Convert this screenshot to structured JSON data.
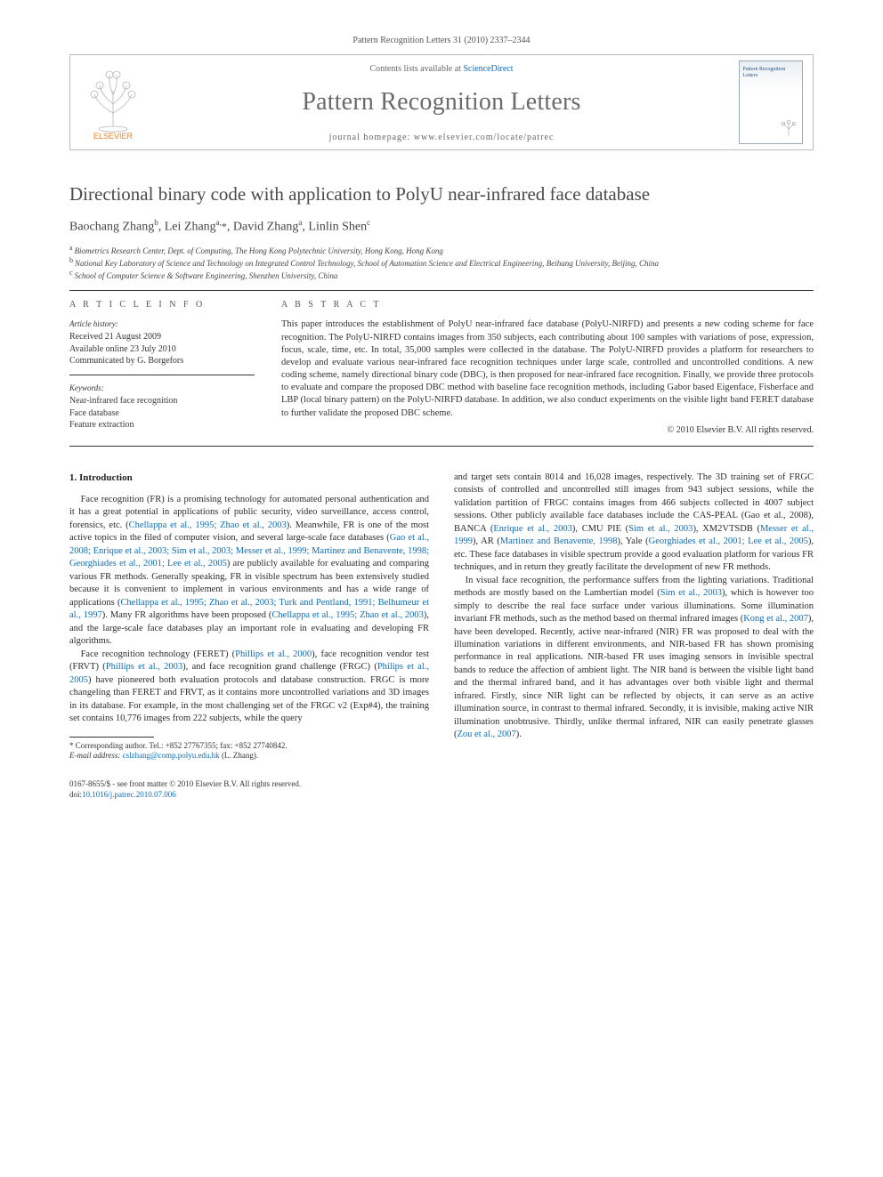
{
  "citation": "Pattern Recognition Letters 31 (2010) 2337–2344",
  "header": {
    "contents_prefix": "Contents lists available at ",
    "contents_link": "ScienceDirect",
    "journal": "Pattern Recognition Letters",
    "homepage_label": "journal homepage: www.elsevier.com/locate/patrec",
    "elsevier_label": "ELSEVIER",
    "cover_title": "Pattern Recognition Letters"
  },
  "title": "Directional binary code with application to PolyU near-infrared face database",
  "authors_html": "Baochang Zhang<sup>b</sup>, Lei Zhang<sup>a,</sup><span class='corr'>*</span>, David Zhang<sup>a</sup>, Linlin Shen<sup>c</sup>",
  "affiliations": {
    "a": "Biometrics Research Center, Dept. of Computing, The Hong Kong Polytechnic University, Hong Kong, Hong Kong",
    "b": "National Key Laboratory of Science and Technology on Integrated Control Technology, School of Automation Science and Electrical Engineering, Beihang University, Beijing, China",
    "c": "School of Computer Science & Software Engineering, Shenzhen University, China"
  },
  "meta": {
    "article_info_heading": "A R T I C L E   I N F O",
    "abstract_heading": "A B S T R A C T",
    "history_label": "Article history:",
    "received": "Received 21 August 2009",
    "online": "Available online 23 July 2010",
    "communicated": "Communicated by G. Borgefors",
    "keywords_label": "Keywords:",
    "keywords": [
      "Near-infrared face recognition",
      "Face database",
      "Feature extraction"
    ]
  },
  "abstract": "This paper introduces the establishment of PolyU near-infrared face database (PolyU-NIRFD) and presents a new coding scheme for face recognition. The PolyU-NIRFD contains images from 350 subjects, each contributing about 100 samples with variations of pose, expression, focus, scale, time, etc. In total, 35,000 samples were collected in the database. The PolyU-NIRFD provides a platform for researchers to develop and evaluate various near-infrared face recognition techniques under large scale, controlled and uncontrolled conditions. A new coding scheme, namely directional binary code (DBC), is then proposed for near-infrared face recognition. Finally, we provide three protocols to evaluate and compare the proposed DBC method with baseline face recognition methods, including Gabor based Eigenface, Fisherface and LBP (local binary pattern) on the PolyU-NIRFD database. In addition, we also conduct experiments on the visible light band FERET database to further validate the proposed DBC scheme.",
  "copyright": "© 2010 Elsevier B.V. All rights reserved.",
  "section1": {
    "heading": "1. Introduction",
    "p1_a": "Face recognition (FR) is a promising technology for automated personal authentication and it has a great potential in applications of public security, video surveillance, access control, forensics, etc. (",
    "p1_ref1": "Chellappa et al., 1995; Zhao et al., 2003",
    "p1_b": "). Meanwhile, FR is one of the most active topics in the filed of computer vision, and several large-scale face databases (",
    "p1_ref2": "Gao et al., 2008; Enrique et al., 2003; Sim et al., 2003; Messer et al., 1999; Martinez and Benavente, 1998; Georghiades et al., 2001; Lee et al., 2005",
    "p1_c": ") are publicly available for evaluating and comparing various FR methods. Generally speaking, FR in visible spectrum has been extensively studied because it is convenient to implement in various environments and has a wide range of applications (",
    "p1_ref3": "Chellappa et al., 1995; Zhao et al., 2003; Turk and Pentland, 1991; Belhumeur et al., 1997",
    "p1_d": "). Many FR algorithms have been proposed (",
    "p1_ref4": "Chellappa et al., 1995; Zhao et al., 2003",
    "p1_e": "), and the large-scale face databases play an important role in evaluating and developing FR algorithms.",
    "p2_a": "Face recognition technology (FERET) (",
    "p2_ref1": "Phillips et al., 2000",
    "p2_b": "), face recognition vendor test (FRVT) (",
    "p2_ref2": "Phillips et al., 2003",
    "p2_c": "), and face recognition grand challenge (FRGC) (",
    "p2_ref3": "Philips et al., 2005",
    "p2_d": ") have pioneered both evaluation protocols and database construction. FRGC is more changeling than FERET and FRVT, as it contains more uncontrolled variations and 3D images in its database. For example, in the most challenging set of the FRGC v2 (Exp#4), the training set contains 10,776 images from 222 subjects, while the query ",
    "p3_a": "and target sets contain 8014 and 16,028 images, respectively. The 3D training set of FRGC consists of controlled and uncontrolled still images from 943 subject sessions, while the validation partition of FRGC contains images from 466 subjects collected in 4007 subject sessions. Other publicly available face databases include the CAS-PEAL (Gao et al., 2008), BANCA (",
    "p3_ref1": "Enrique et al., 2003",
    "p3_b": "), CMU PIE (",
    "p3_ref2": "Sim et al., 2003",
    "p3_c": "), XM2VTSDB (",
    "p3_ref3": "Messer et al., 1999",
    "p3_d": "), AR (",
    "p3_ref4": "Martinez and Benavente, 1998",
    "p3_e": "), Yale (",
    "p3_ref5": "Georghiades et al., 2001; Lee et al., 2005",
    "p3_f": "), etc. These face databases in visible spectrum provide a good evaluation platform for various FR techniques, and in return they greatly facilitate the development of new FR methods.",
    "p4_a": "In visual face recognition, the performance suffers from the lighting variations. Traditional methods are mostly based on the Lambertian model (",
    "p4_ref1": "Sim et al., 2003",
    "p4_b": "), which is however too simply to describe the real face surface under various illuminations. Some illumination invariant FR methods, such as the method based on thermal infrared images (",
    "p4_ref2": "Kong et al., 2007",
    "p4_c": "), have been developed. Recently, active near-infrared (NIR) FR was proposed to deal with the illumination variations in different environments, and NIR-based FR has shown promising performance in real applications. NIR-based FR uses imaging sensors in invisible spectral bands to reduce the affection of ambient light. The NIR band is between the visible light band and the thermal infrared band, and it has advantages over both visible light and thermal infrared. Firstly, since NIR light can be reflected by objects, it can serve as an active illumination source, in contrast to thermal infrared. Secondly, it is invisible, making active NIR illumination unobtrusive. Thirdly, unlike thermal infrared, NIR can easily penetrate glasses (",
    "p4_ref3": "Zou et al., 2007",
    "p4_d": ")."
  },
  "footnote": {
    "corr_label": "* Corresponding author. Tel.: +852 27767355; fax: +852 27740842.",
    "email_label": "E-mail address:",
    "email": "cslzhang@comp.polyu.edu.hk",
    "email_person": "(L. Zhang)."
  },
  "footer": {
    "line1": "0167-8655/$ - see front matter © 2010 Elsevier B.V. All rights reserved.",
    "doi_label": "doi:",
    "doi": "10.1016/j.patrec.2010.07.006"
  },
  "colors": {
    "link": "#0f6db5",
    "text": "#3a3a3a",
    "rule": "#333333",
    "elsevier_orange": "#ee7f1a",
    "elsevier_text": "#6a6a6a"
  }
}
